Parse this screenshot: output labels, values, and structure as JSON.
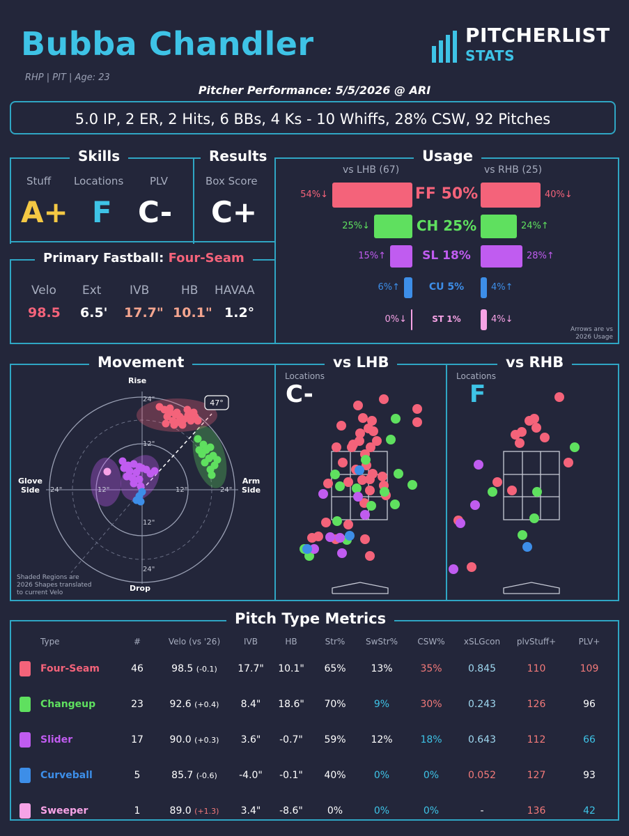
{
  "pitcher": {
    "name": "Bubba Chandler",
    "info": "RHP | PIT | Age: 23"
  },
  "logo": {
    "line1": "PITCHERLIST",
    "line2": "STATS"
  },
  "performance_title": "Pitcher Performance: 5/5/2026 @ ARI",
  "summary": "5.0 IP, 2 ER, 2 Hits, 6 BBs, 4 Ks - 10 Whiffs, 28% CSW, 92 Pitches",
  "skills": {
    "title": "Skills",
    "stuff_label": "Stuff",
    "stuff": "A+",
    "locations_label": "Locations",
    "locations": "F",
    "plv_label": "PLV",
    "plv": "C-"
  },
  "results": {
    "title": "Results",
    "box_label": "Box Score",
    "box": "C+"
  },
  "primary_fastball": {
    "title": "Primary Fastball:",
    "pitch": "Four-Seam",
    "labels": [
      "Velo",
      "Ext",
      "IVB",
      "HB",
      "HAVAA"
    ],
    "values": [
      "98.5",
      "6.5'",
      "17.7\"",
      "10.1\"",
      "1.2°"
    ]
  },
  "usage": {
    "title": "Usage",
    "lhb_header": "vs LHB (67)",
    "rhb_header": "vs RHB (25)",
    "rows": [
      {
        "label": "FF 50%",
        "lhb": "54%↓",
        "rhb": "40%↓",
        "color": "#f4637a"
      },
      {
        "label": "CH 25%",
        "lhb": "25%↓",
        "rhb": "24%↑",
        "color": "#5fe05f"
      },
      {
        "label": "SL 18%",
        "lhb": "15%↑",
        "rhb": "28%↑",
        "color": "#c05cf0"
      },
      {
        "label": "CU 5%",
        "lhb": "6%↑",
        "rhb": "4%↑",
        "color": "#3d8ee8"
      },
      {
        "label": "ST 1%",
        "lhb": "0%↓",
        "rhb": "4%↓",
        "color": "#f7a3e6"
      }
    ],
    "note1": "Arrows are vs",
    "note2": "2026 Usage"
  },
  "movement": {
    "title": "Movement",
    "rise": "Rise",
    "drop": "Drop",
    "glove1": "Glove",
    "glove2": "Side",
    "arm1": "Arm",
    "arm2": "Side",
    "angle": "47°",
    "ticks": [
      "24\"",
      "12\"",
      "12\"",
      "24\"",
      "24\"",
      "12\"",
      "12\"",
      "24\""
    ],
    "note": [
      "Shaded Regions are",
      "2026 Shapes translated",
      "to current Velo"
    ]
  },
  "vs_lhb": {
    "title": "vs LHB",
    "loc_label": "Locations",
    "grade": "C-"
  },
  "vs_rhb": {
    "title": "vs RHB",
    "loc_label": "Locations",
    "grade": "F"
  },
  "metrics": {
    "title": "Pitch Type Metrics",
    "headers": [
      "Type",
      "#",
      "Velo (vs '26)",
      "IVB",
      "HB",
      "Str%",
      "SwStr%",
      "CSW%",
      "xSLGcon",
      "plvStuff+",
      "PLV+"
    ],
    "rows": [
      {
        "type": "Four-Seam",
        "color": "#f4637a",
        "n": "46",
        "velo": "98.5",
        "delta": "(-0.1)",
        "ivb": "17.7\"",
        "hb": "10.1\"",
        "str": "65%",
        "swstr": "13%",
        "csw": "35%",
        "xslg": "0.845",
        "stuff": "110",
        "plv": "109"
      },
      {
        "type": "Changeup",
        "color": "#5fe05f",
        "n": "23",
        "velo": "92.6",
        "delta": "(+0.4)",
        "ivb": "8.4\"",
        "hb": "18.6\"",
        "str": "70%",
        "swstr": "9%",
        "csw": "30%",
        "xslg": "0.243",
        "stuff": "126",
        "plv": "96"
      },
      {
        "type": "Slider",
        "color": "#c05cf0",
        "n": "17",
        "velo": "90.0",
        "delta": "(+0.3)",
        "ivb": "3.6\"",
        "hb": "-0.7\"",
        "str": "59%",
        "swstr": "12%",
        "csw": "18%",
        "xslg": "0.643",
        "stuff": "112",
        "plv": "66"
      },
      {
        "type": "Curveball",
        "color": "#3d8ee8",
        "n": "5",
        "velo": "85.7",
        "delta": "(-0.6)",
        "ivb": "-4.0\"",
        "hb": "-0.1\"",
        "str": "40%",
        "swstr": "0%",
        "csw": "0%",
        "xslg": "0.052",
        "stuff": "127",
        "plv": "93"
      },
      {
        "type": "Sweeper",
        "color": "#f7a3e6",
        "n": "1",
        "velo": "89.0",
        "delta": "(+1.3)",
        "ivb": "3.4\"",
        "hb": "-8.6\"",
        "str": "0%",
        "swstr": "0%",
        "csw": "0%",
        "xslg": "-",
        "stuff": "136",
        "plv": "42"
      }
    ]
  }
}
